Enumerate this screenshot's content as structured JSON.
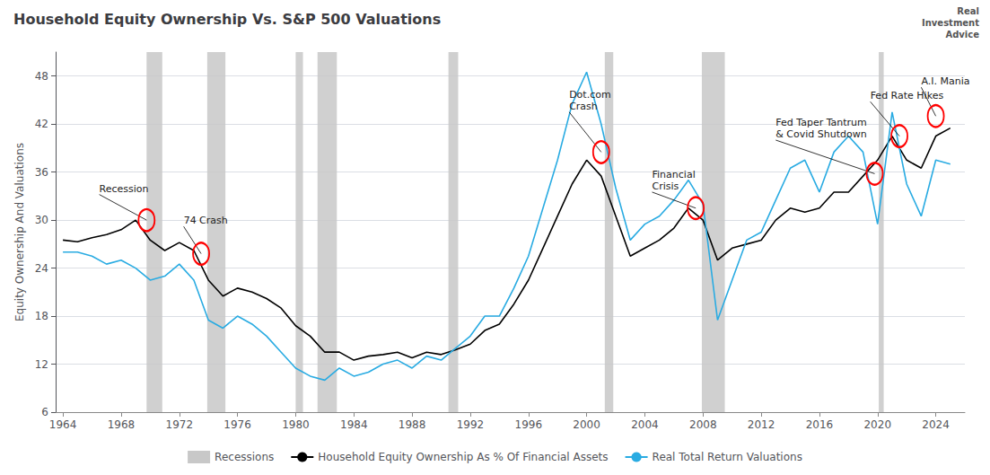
{
  "chart_data": {
    "type": "line",
    "title": "Household Equity Ownership Vs. S&P 500 Valuations",
    "y_label": "Equity Ownership And Valuations",
    "x": [
      1964,
      1965,
      1966,
      1967,
      1968,
      1969,
      1970,
      1971,
      1972,
      1973,
      1974,
      1975,
      1976,
      1977,
      1978,
      1979,
      1980,
      1981,
      1982,
      1983,
      1984,
      1985,
      1986,
      1987,
      1988,
      1989,
      1990,
      1991,
      1992,
      1993,
      1994,
      1995,
      1996,
      1997,
      1998,
      1999,
      2000,
      2001,
      2002,
      2003,
      2004,
      2005,
      2006,
      2007,
      2008,
      2009,
      2010,
      2011,
      2012,
      2013,
      2014,
      2015,
      2016,
      2017,
      2018,
      2019,
      2020,
      2021,
      2022,
      2023,
      2024,
      2025
    ],
    "series": [
      {
        "name": "Household Equity Ownership As % Of Financial Assets",
        "color": "#000000",
        "values": [
          27.5,
          27.3,
          27.8,
          28.2,
          28.8,
          30.0,
          27.5,
          26.2,
          27.2,
          26.2,
          22.5,
          20.5,
          21.5,
          21.0,
          20.2,
          19.0,
          16.8,
          15.5,
          13.5,
          13.5,
          12.5,
          13.0,
          13.2,
          13.5,
          12.8,
          13.5,
          13.2,
          13.8,
          14.5,
          16.2,
          17.0,
          19.5,
          22.5,
          26.5,
          30.5,
          34.5,
          37.5,
          35.5,
          30.5,
          25.5,
          26.5,
          27.5,
          29.0,
          31.5,
          30.0,
          25.0,
          26.5,
          27.0,
          27.5,
          30.0,
          31.5,
          31.0,
          31.5,
          33.5,
          33.5,
          35.5,
          37.5,
          40.5,
          37.5,
          36.5,
          40.5,
          41.5
        ]
      },
      {
        "name": "Real Total Return Valuations",
        "color": "#29abe2",
        "values": [
          26.0,
          26.0,
          25.5,
          24.5,
          25.0,
          24.0,
          22.5,
          23.0,
          24.5,
          22.5,
          17.5,
          16.5,
          18.0,
          17.0,
          15.5,
          13.5,
          11.5,
          10.5,
          10.0,
          11.5,
          10.5,
          11.0,
          12.0,
          12.5,
          11.5,
          13.0,
          12.5,
          14.0,
          15.5,
          18.0,
          18.0,
          21.5,
          25.5,
          31.5,
          37.5,
          44.5,
          48.5,
          42.0,
          34.0,
          27.5,
          29.5,
          30.5,
          32.5,
          35.0,
          32.0,
          17.5,
          22.5,
          27.5,
          28.5,
          32.5,
          36.5,
          37.5,
          33.5,
          38.5,
          40.5,
          38.5,
          29.5,
          43.5,
          34.5,
          30.5,
          37.5,
          37.0
        ]
      }
    ],
    "xlim": [
      1963.5,
      2026.0
    ],
    "xticks": [
      1964,
      1968,
      1972,
      1976,
      1980,
      1984,
      1988,
      1992,
      1996,
      2000,
      2004,
      2008,
      2012,
      2016,
      2020,
      2024
    ],
    "ylim": [
      6,
      51
    ],
    "yticks": [
      6,
      12,
      18,
      24,
      30,
      36,
      42,
      48
    ],
    "grid": true,
    "legend": "bottom",
    "recessions": {
      "name": "Recessions",
      "color": "#c8c8c8",
      "spans": [
        [
          1969.75,
          1970.83
        ],
        [
          1973.92,
          1975.17
        ],
        [
          1980.0,
          1980.5
        ],
        [
          1981.5,
          1982.83
        ],
        [
          1990.5,
          1991.17
        ],
        [
          2001.25,
          2001.83
        ],
        [
          2007.92,
          2009.5
        ],
        [
          2020.08,
          2020.42
        ]
      ]
    },
    "annotations": [
      {
        "text": "Recession",
        "xy": [
          1969.75,
          30.0
        ],
        "xytext": [
          1966.5,
          33.2
        ]
      },
      {
        "text": "74 Crash",
        "xy": [
          1973.5,
          25.8
        ],
        "xytext": [
          1972.3,
          29.2
        ]
      },
      {
        "text": "Dot.com\nCrash",
        "xy": [
          2001.0,
          38.5
        ],
        "xytext": [
          1998.8,
          43.5
        ]
      },
      {
        "text": "Financial\nCrisis",
        "xy": [
          2007.5,
          31.5
        ],
        "xytext": [
          2004.5,
          33.5
        ]
      },
      {
        "text": "Fed Taper Tantrum\n& Covid Shutdown",
        "xy": [
          2019.8,
          35.8
        ],
        "xytext": [
          2013.0,
          40.0
        ]
      },
      {
        "text": "Fed Rate Hikes",
        "xy": [
          2021.5,
          40.5
        ],
        "xytext": [
          2019.5,
          44.8
        ]
      },
      {
        "text": "A.I. Mania",
        "xy": [
          2024.0,
          43.0
        ],
        "xytext": [
          2023.0,
          45.5
        ]
      }
    ],
    "logo_text": "Real\nInvestment\nAdvice"
  }
}
